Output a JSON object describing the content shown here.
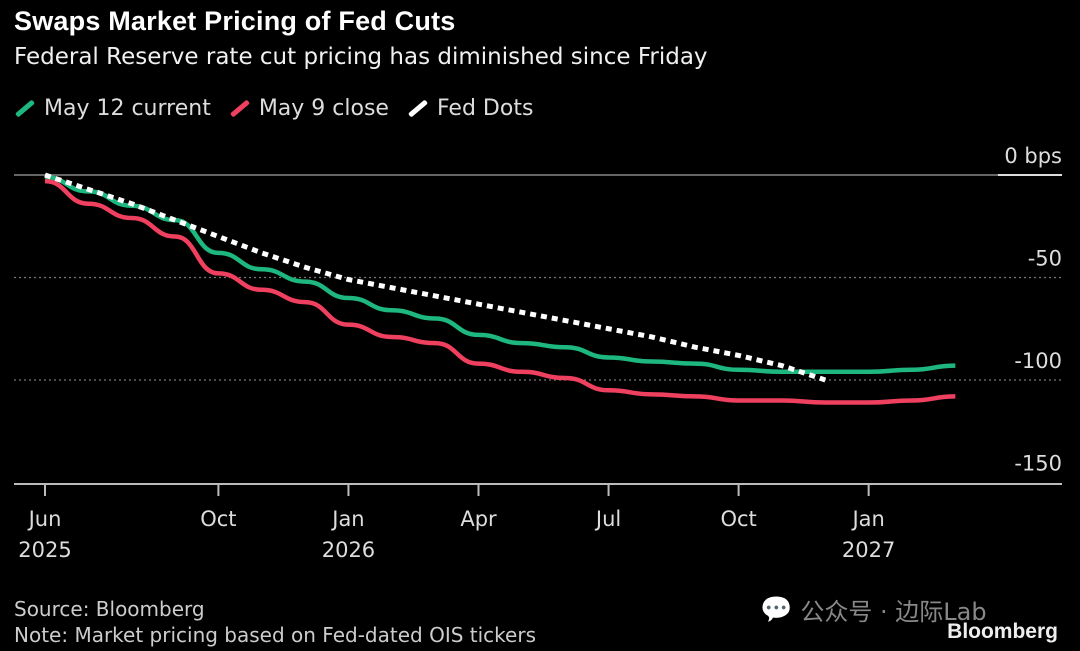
{
  "chart_data": {
    "type": "line",
    "title": "Swaps Market Pricing of Fed Cuts",
    "subtitle": "Federal Reserve rate cut pricing has diminished since Friday",
    "x_months": [
      "2025-06",
      "2025-07",
      "2025-08",
      "2025-09",
      "2025-10",
      "2025-11",
      "2025-12",
      "2026-01",
      "2026-02",
      "2026-03",
      "2026-04",
      "2026-05",
      "2026-06",
      "2026-07",
      "2026-08",
      "2026-09",
      "2026-10",
      "2026-11",
      "2026-12",
      "2027-01",
      "2027-02",
      "2027-03"
    ],
    "x_ticks": [
      {
        "month_index": 0,
        "label": "Jun",
        "year": "2025"
      },
      {
        "month_index": 4,
        "label": "Oct",
        "year": ""
      },
      {
        "month_index": 7,
        "label": "Jan",
        "year": "2026"
      },
      {
        "month_index": 10,
        "label": "Apr",
        "year": ""
      },
      {
        "month_index": 13,
        "label": "Jul",
        "year": ""
      },
      {
        "month_index": 16,
        "label": "Oct",
        "year": ""
      },
      {
        "month_index": 19,
        "label": "Jan",
        "year": "2027"
      }
    ],
    "y_ticks": [
      {
        "value": 0,
        "label": "0 bps"
      },
      {
        "value": -50,
        "label": "-50"
      },
      {
        "value": -100,
        "label": "-100"
      },
      {
        "value": -150,
        "label": "-150"
      }
    ],
    "ylim": [
      -150,
      0
    ],
    "grid": "horizontal dotted",
    "legend_position": "top-left",
    "series": [
      {
        "name": "May 12 current",
        "color": "#1db77f",
        "style": "solid",
        "values": [
          -1,
          -8,
          -15,
          -22,
          -38,
          -46,
          -52,
          -60,
          -66,
          -70,
          -78,
          -82,
          -84,
          -89,
          -91,
          -92,
          -95,
          -96,
          -96,
          -96,
          -95,
          -93
        ]
      },
      {
        "name": "May 9 close",
        "color": "#f0405f",
        "style": "solid",
        "values": [
          -3,
          -14,
          -21,
          -30,
          -48,
          -56,
          -62,
          -73,
          -79,
          -82,
          -92,
          -96,
          -99,
          -105,
          -107,
          -108,
          -110,
          -110,
          -111,
          -111,
          -110,
          -108
        ]
      },
      {
        "name": "Fed Dots",
        "color": "#ffffff",
        "style": "dotted",
        "values": [
          0,
          -7,
          -14,
          -22,
          -30,
          -38,
          -45,
          -51,
          -55,
          -59,
          -63,
          -67,
          -71,
          -75,
          -79,
          -84,
          -88,
          -93,
          -100
        ]
      }
    ]
  },
  "source": "Source: Bloomberg",
  "note": "Note: Market pricing based on Fed-dated OIS tickers",
  "watermark": "公众号 · 边际Lab",
  "logo": "Bloomberg"
}
